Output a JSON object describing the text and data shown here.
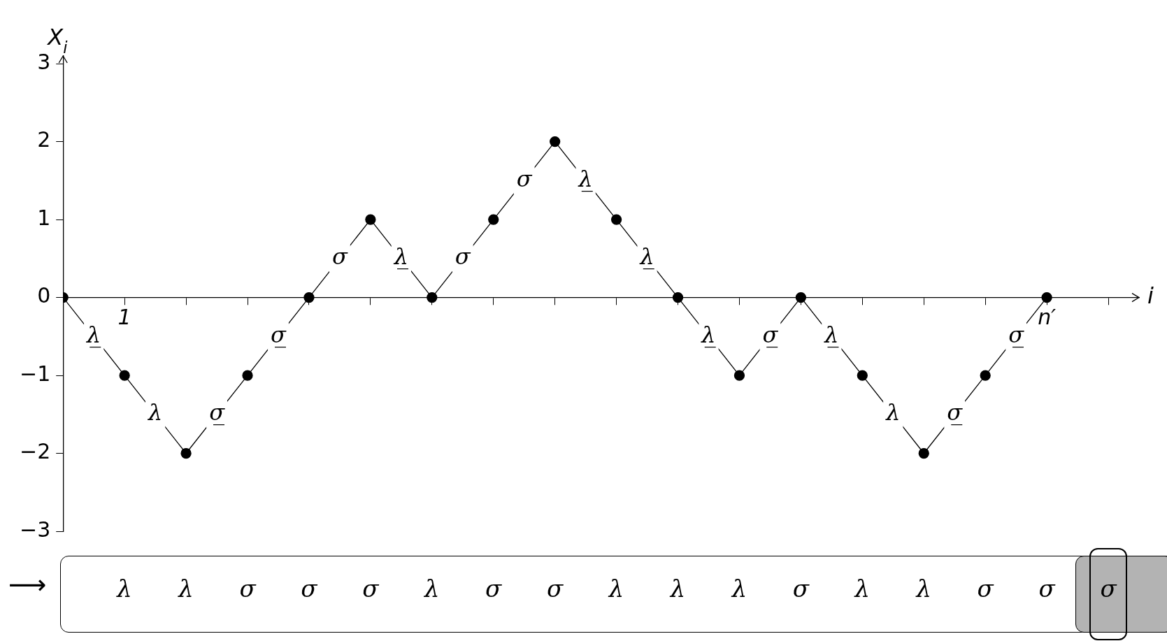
{
  "chart_data": {
    "type": "line",
    "xlabel": "i",
    "ylabel": "X$_{i}$",
    "categories": [
      null,
      "1",
      null,
      null,
      null,
      null,
      null,
      null,
      null,
      null,
      null,
      null,
      null,
      null,
      null,
      null,
      "n′",
      null
    ],
    "series": [
      {
        "color": "#000000",
        "values": [
          0,
          -1,
          -2,
          -1,
          0,
          1,
          0,
          1,
          2,
          1,
          0,
          -1,
          0,
          -1,
          -2,
          -1,
          0,
          null
        ]
      }
    ],
    "ylim": [
      -3,
      3.1
    ],
    "yticks": [
      -3,
      -2,
      -1,
      0,
      1,
      2,
      3
    ],
    "grid": false,
    "legend": false,
    "marker": "circle",
    "line_style": "solid",
    "annotations": [
      "λ̲",
      "λ",
      "σ̲",
      "σ̲",
      "σ",
      "λ̲",
      "σ",
      "σ",
      "λ̲",
      "λ̲",
      "λ̲",
      "σ̲",
      "λ̲",
      "λ",
      "σ̲",
      "σ̲",
      "⟶",
      "λ",
      "λ",
      "σ",
      "σ",
      "σ",
      "λ",
      "σ",
      "σ",
      "λ",
      "λ",
      "λ",
      "σ",
      "λ",
      "λ",
      "σ",
      "σ",
      "σ"
    ]
  }
}
